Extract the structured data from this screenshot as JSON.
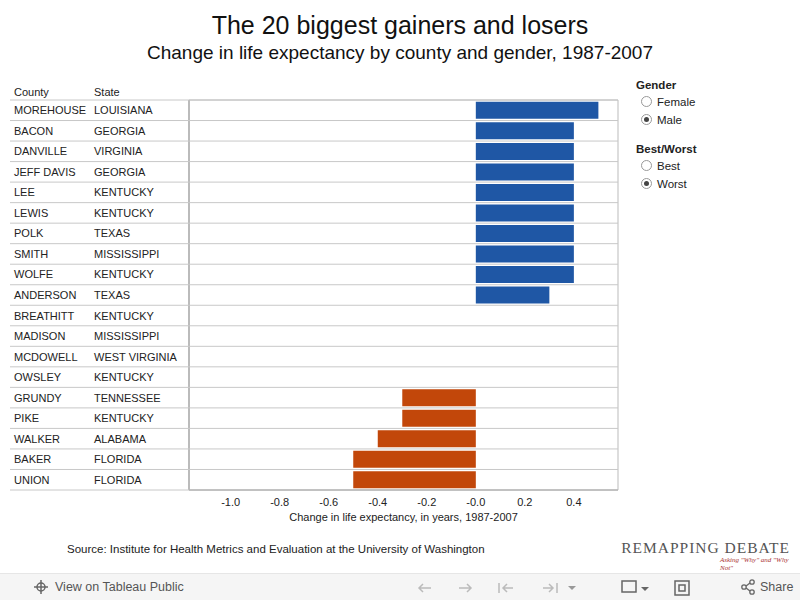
{
  "chart_data": {
    "type": "bar",
    "orientation": "horizontal",
    "title": "The 20 biggest gainers and losers",
    "subtitle": "Change in life expectancy by county and gender, 1987-2007",
    "column_headers": [
      "County",
      "State"
    ],
    "categories": [
      "MOREHOUSE",
      "BACON",
      "DANVILLE",
      "JEFF DAVIS",
      "LEE",
      "LEWIS",
      "POLK",
      "SMITH",
      "WOLFE",
      "ANDERSON",
      "BREATHITT",
      "MADISON",
      "MCDOWELL",
      "OWSLEY",
      "GRUNDY",
      "PIKE",
      "WALKER",
      "BAKER",
      "UNION"
    ],
    "states": [
      "LOUISIANA",
      "GEORGIA",
      "VIRGINIA",
      "GEORGIA",
      "KENTUCKY",
      "KENTUCKY",
      "TEXAS",
      "MISSISSIPPI",
      "KENTUCKY",
      "TEXAS",
      "KENTUCKY",
      "MISSISSIPPI",
      "WEST VIRGINIA",
      "KENTUCKY",
      "TENNESSEE",
      "KENTUCKY",
      "ALABAMA",
      "FLORIDA",
      "FLORIDA"
    ],
    "values": [
      0.5,
      0.4,
      0.4,
      0.4,
      0.4,
      0.4,
      0.4,
      0.4,
      0.4,
      0.3,
      0.0,
      0.0,
      0.0,
      0.0,
      -0.3,
      -0.3,
      -0.4,
      -0.5,
      -0.5
    ],
    "colors": [
      "#1f57a5",
      "#1f57a5",
      "#1f57a5",
      "#1f57a5",
      "#1f57a5",
      "#1f57a5",
      "#1f57a5",
      "#1f57a5",
      "#1f57a5",
      "#1f57a5",
      "#1f57a5",
      "#1f57a5",
      "#1f57a5",
      "#1f57a5",
      "#c2470a",
      "#c2470a",
      "#c2470a",
      "#c2470a",
      "#c2470a"
    ],
    "xlabel": "Change in life expectancy, in years, 1987-2007",
    "xlim": [
      -1.17,
      0.58
    ],
    "xticks": [
      {
        "value": -1,
        "label": "-1.0"
      },
      -0.8,
      -0.6,
      -0.4,
      -0.2,
      {
        "value": 0,
        "label": "-0.0"
      },
      0.2,
      0.4
    ],
    "grid": true,
    "controls": [
      {
        "title": "Gender",
        "options": [
          "Female",
          "Male"
        ],
        "selected": "Male"
      },
      {
        "title": "Best/Worst",
        "options": [
          "Best",
          "Worst"
        ],
        "selected": "Worst"
      }
    ],
    "source": "Source: Institute for Health Metrics and Evaluation at the University of Washington",
    "logo": "REMAPPING DEBATE",
    "logo_tagline": "Asking \"Why\" and \"Why Not\"",
    "toolbar": [
      "View on Tableau Public",
      "Share"
    ]
  }
}
